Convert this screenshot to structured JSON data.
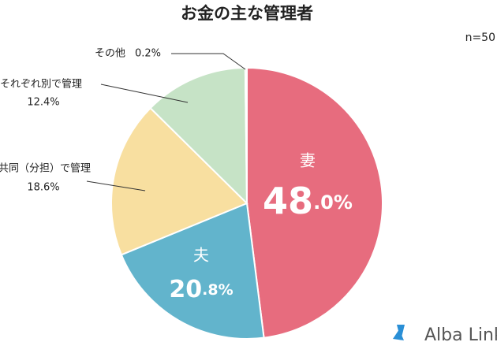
{
  "chart_data": {
    "type": "pie",
    "title": "お金の主な管理者",
    "subtitle": "n=50",
    "categories": [
      "妻",
      "夫",
      "共同（分担）で管理",
      "それぞれ別で管理",
      "その他"
    ],
    "values": [
      48.0,
      20.8,
      18.6,
      12.4,
      0.2
    ],
    "value_labels": [
      "48.0%",
      "20.8%",
      "18.6%",
      "12.4%",
      "0.2%"
    ],
    "colors": [
      "#e76c7e",
      "#62b4cc",
      "#f8dfa0",
      "#c6e3c6",
      "#d9d9d9"
    ],
    "watermark": "Alba Link"
  }
}
